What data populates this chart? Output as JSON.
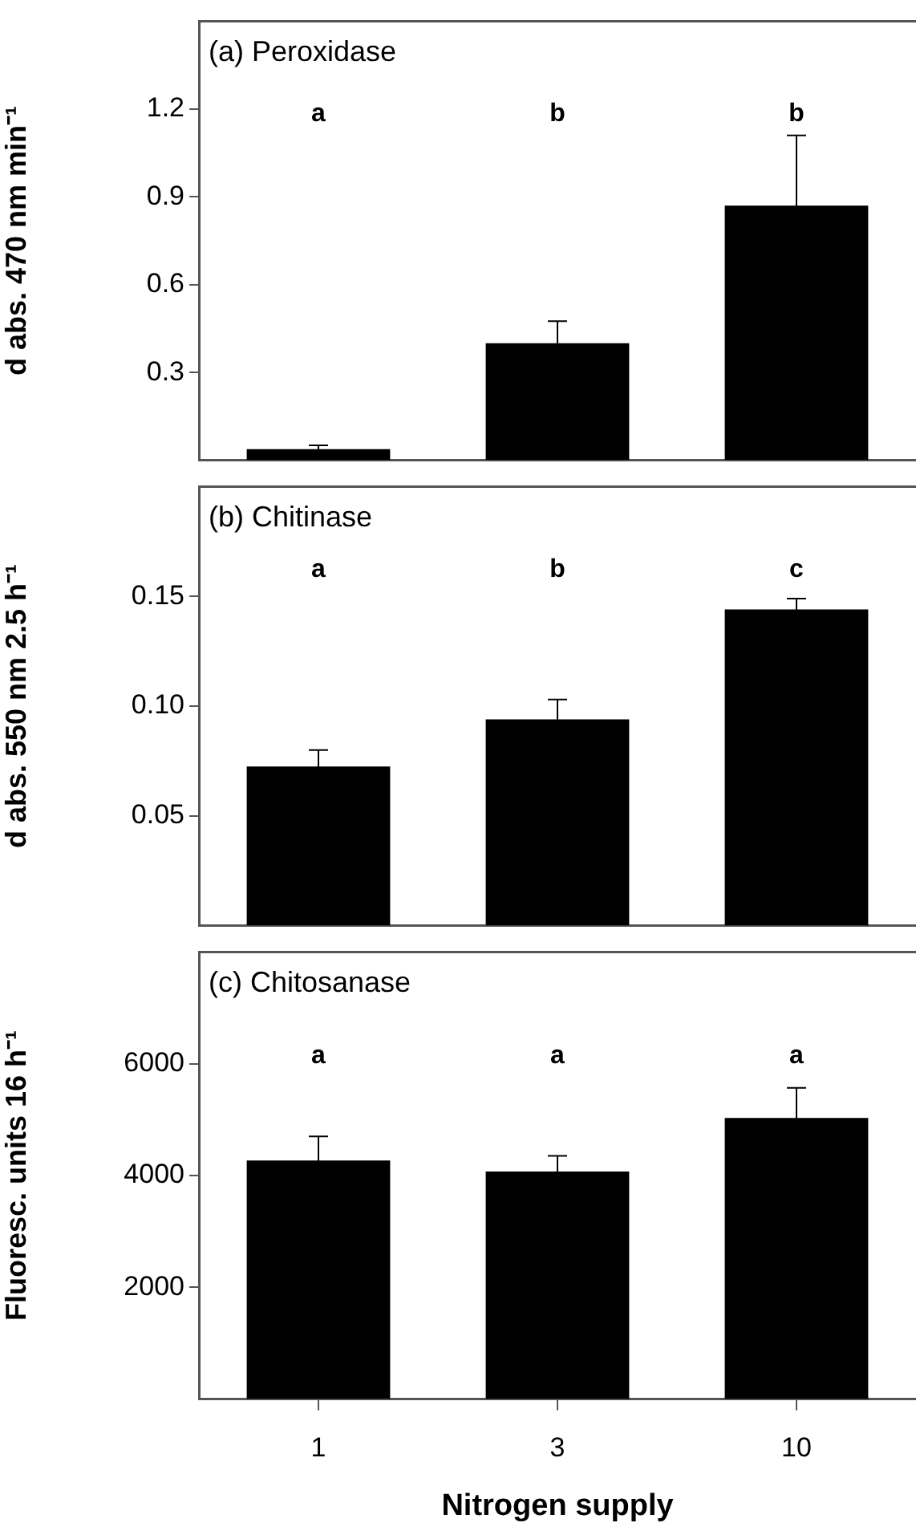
{
  "chart_data": [
    {
      "type": "bar",
      "title": "(a) Peroxidase",
      "ylabel": "d abs. 470 nm min⁻¹",
      "categories": [
        "1",
        "3",
        "10"
      ],
      "values": [
        0.038,
        0.4,
        0.87
      ],
      "errors": [
        0.013,
        0.075,
        0.24
      ],
      "color": "#000000",
      "ylim": [
        0,
        1.5
      ],
      "yticks": [
        0.3,
        0.6,
        0.9,
        1.2
      ],
      "grid": false,
      "legend": false,
      "tick_labels": "y",
      "annotations": [
        "a",
        "b",
        "b"
      ]
    },
    {
      "type": "bar",
      "title": "(b) Chitinase",
      "ylabel": "d abs. 550 nm 2.5 h⁻¹",
      "categories": [
        "1",
        "3",
        "10"
      ],
      "values": [
        0.0725,
        0.094,
        0.144
      ],
      "errors": [
        0.0075,
        0.009,
        0.005
      ],
      "color": "#000000",
      "ylim": [
        0,
        0.2
      ],
      "yticks": [
        {
          "value": 0.05,
          "label": "0.05"
        },
        {
          "value": 0.1,
          "label": "0.10"
        },
        {
          "value": 0.15,
          "label": "0.15"
        }
      ],
      "grid": false,
      "legend": false,
      "tick_labels": "y",
      "annotations": [
        "a",
        "b",
        "c"
      ]
    },
    {
      "type": "bar",
      "title": "(c) Chitosanase",
      "ylabel": "Fluoresc. units 16 h⁻¹",
      "xlabel": "Nitrogen supply",
      "categories": [
        "1",
        "3",
        "10"
      ],
      "values": [
        4270,
        4070,
        5030
      ],
      "errors": [
        430,
        280,
        540
      ],
      "color": "#000000",
      "ylim": [
        0,
        8000
      ],
      "yticks": [
        2000,
        4000,
        6000
      ],
      "grid": false,
      "legend": false,
      "annotations": [
        "a",
        "a",
        "a"
      ]
    }
  ]
}
